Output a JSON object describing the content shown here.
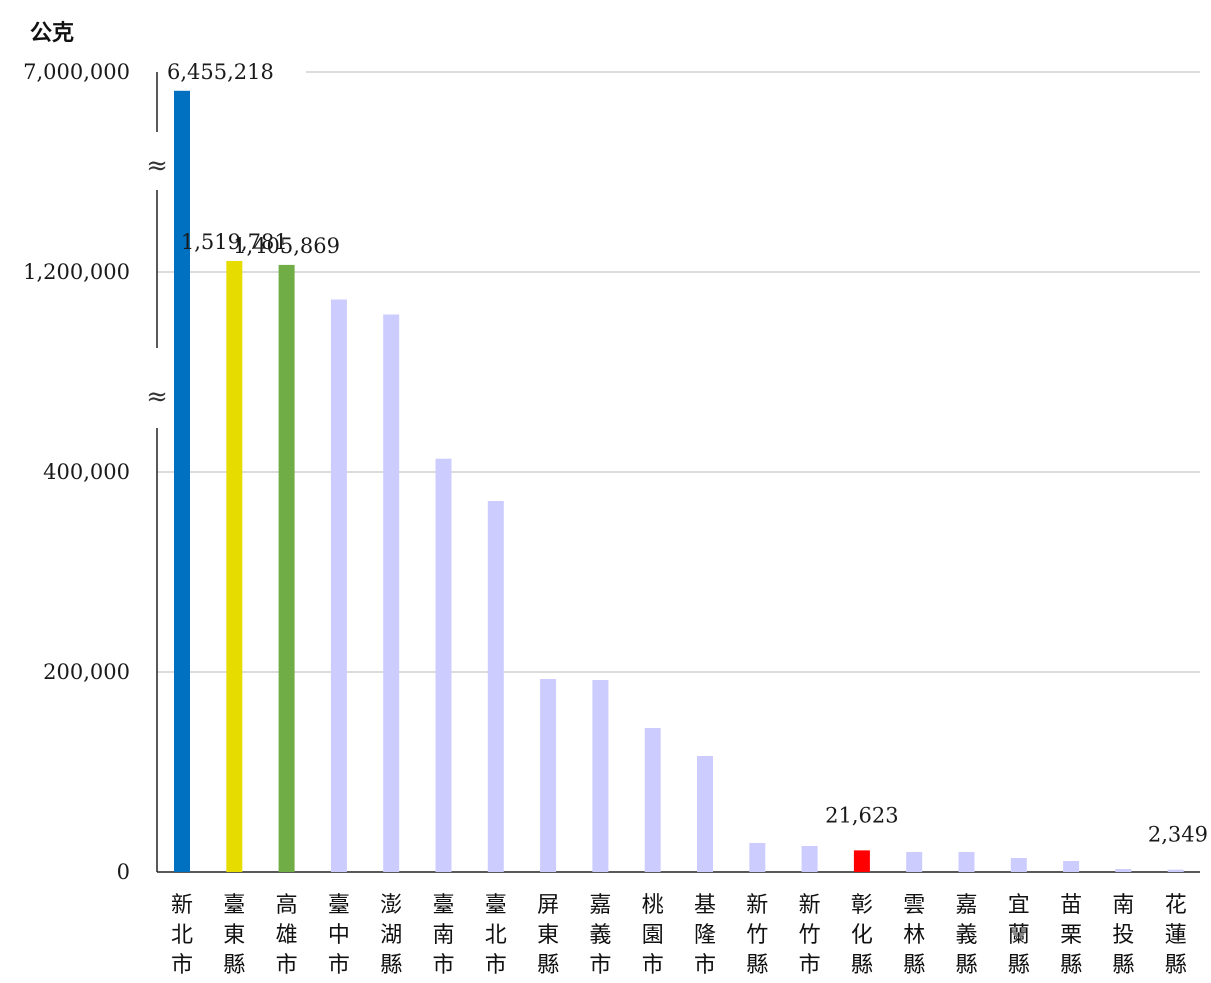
{
  "chart_data": {
    "type": "bar",
    "ylabel": "公克",
    "y_ticks": [
      {
        "label": "7,000,000"
      },
      {
        "label": "1,200,000"
      },
      {
        "label": "400,000"
      },
      {
        "label": "200,000"
      },
      {
        "label": "0"
      }
    ],
    "axis_break_symbol": "≈",
    "grid": true,
    "categories": [
      "新北市",
      "臺東縣",
      "高雄市",
      "臺中市",
      "澎湖縣",
      "臺南市",
      "臺北市",
      "屏東縣",
      "嘉義市",
      "桃園市",
      "基隆市",
      "新竹縣",
      "新竹市",
      "彰化縣",
      "雲林縣",
      "嘉義縣",
      "宜蘭縣",
      "苗栗縣",
      "南投縣",
      "花蓮縣"
    ],
    "values": [
      6455218,
      1519781,
      1405869,
      1090000,
      1030000,
      453000,
      371000,
      193000,
      192000,
      144000,
      116000,
      29000,
      26000,
      21623,
      20000,
      20000,
      14000,
      11000,
      3000,
      2349
    ],
    "colors": [
      "#0070C0",
      "#E6DC00",
      "#70AD47",
      "#CCCCFF",
      "#CCCCFF",
      "#CCCCFF",
      "#CCCCFF",
      "#CCCCFF",
      "#CCCCFF",
      "#CCCCFF",
      "#CCCCFF",
      "#CCCCFF",
      "#CCCCFF",
      "#FF0000",
      "#CCCCFF",
      "#CCCCFF",
      "#CCCCFF",
      "#CCCCFF",
      "#CCCCFF",
      "#CCCCFF"
    ],
    "data_labels": [
      {
        "index": 0,
        "text": "6,455,218"
      },
      {
        "index": 1,
        "text": "1,519,781"
      },
      {
        "index": 2,
        "text": "1,405,869"
      },
      {
        "index": 13,
        "text": "21,623"
      },
      {
        "index": 19,
        "text": "2,349"
      }
    ]
  }
}
